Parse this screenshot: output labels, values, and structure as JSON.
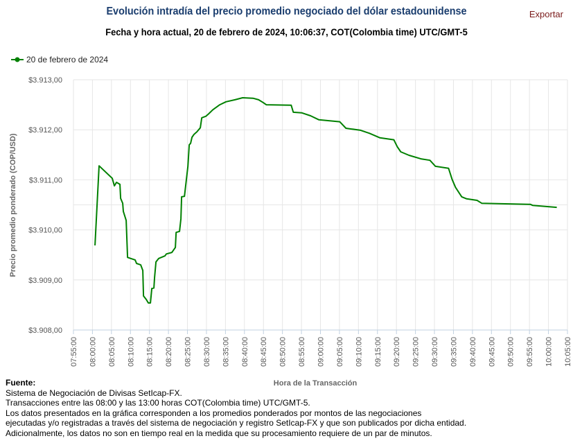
{
  "header": {
    "title": "Evolución intradía del precio promedio negociado del dólar estadounidense",
    "subtitle": "Fecha y hora actual, 20 de febrero de 2024, 10:06:37, COT(Colombia time) UTC/GMT-5",
    "export_label": "Exportar"
  },
  "footer": {
    "source_label": "Fuente:",
    "lines": [
      "Sistema de Negociación de Divisas SetIcap-FX.",
      "Transacciones entre las 08:00 y las 13:00 horas COT(Colombia time) UTC/GMT-5.",
      "Los datos presentados en la gráfica corresponden a los promedios ponderados por montos de las negociaciones",
      "ejecutadas y/o registradas a través del sistema de negociación y registro SetIcap-FX y que son publicados por dicha entidad.",
      "Adicionalmente, los datos no son en tiempo real en la medida que su procesamiento requiere de un par de minutos."
    ]
  },
  "colors": {
    "series": "#008000",
    "title": "#1a3d6e",
    "export": "#7a1a1a",
    "grid": "#e6e6e6",
    "axis": "#c0d0e0"
  },
  "chart_data": {
    "type": "line",
    "xlabel": "Hora de la Transacción",
    "ylabel": "Precio promedio ponderado (COP/USD)",
    "xlim": [
      "07:55:00",
      "10:05:00"
    ],
    "ylim": [
      3908,
      3913
    ],
    "grid": true,
    "legend_position": "top-left",
    "x_ticks": [
      "07:55:00",
      "08:00:00",
      "08:05:00",
      "08:10:00",
      "08:15:00",
      "08:20:00",
      "08:25:00",
      "08:30:00",
      "08:35:00",
      "08:40:00",
      "08:45:00",
      "08:50:00",
      "08:55:00",
      "09:00:00",
      "09:05:00",
      "09:10:00",
      "09:15:00",
      "09:20:00",
      "09:25:00",
      "09:30:00",
      "09:35:00",
      "09:40:00",
      "09:45:00",
      "09:50:00",
      "09:55:00",
      "10:00:00",
      "10:05:00"
    ],
    "y_ticks": [
      {
        "value": 3913,
        "label": "$3.913,00"
      },
      {
        "value": 3912,
        "label": "$3.912,00"
      },
      {
        "value": 3911,
        "label": "$3.911,00"
      },
      {
        "value": 3910,
        "label": "$3.910,00"
      },
      {
        "value": 3909,
        "label": "$3.909,00"
      },
      {
        "value": 3908,
        "label": "$3.908,00"
      }
    ],
    "series": [
      {
        "name": "20 de febrero de 2024",
        "color": "#008000",
        "points": [
          [
            "08:00:40",
            3909.69
          ],
          [
            "08:01:45",
            3911.28
          ],
          [
            "08:05:13",
            3911.03
          ],
          [
            "08:05:46",
            3910.88
          ],
          [
            "08:06:19",
            3910.95
          ],
          [
            "08:07:14",
            3910.91
          ],
          [
            "08:07:25",
            3910.63
          ],
          [
            "08:07:58",
            3910.53
          ],
          [
            "08:08:08",
            3910.37
          ],
          [
            "08:08:52",
            3910.19
          ],
          [
            "08:09:14",
            3909.45
          ],
          [
            "08:11:14",
            3909.4
          ],
          [
            "08:11:37",
            3909.33
          ],
          [
            "08:12:42",
            3909.3
          ],
          [
            "08:13:15",
            3909.19
          ],
          [
            "08:13:26",
            3908.68
          ],
          [
            "08:14:10",
            3908.61
          ],
          [
            "08:14:43",
            3908.54
          ],
          [
            "08:15:15",
            3908.54
          ],
          [
            "08:15:37",
            3908.83
          ],
          [
            "08:16:10",
            3908.84
          ],
          [
            "08:16:21",
            3909.05
          ],
          [
            "08:16:43",
            3909.36
          ],
          [
            "08:17:27",
            3909.43
          ],
          [
            "08:19:05",
            3909.48
          ],
          [
            "08:19:27",
            3909.52
          ],
          [
            "08:20:55",
            3909.55
          ],
          [
            "08:21:49",
            3909.65
          ],
          [
            "08:22:01",
            3909.95
          ],
          [
            "08:22:55",
            3909.97
          ],
          [
            "08:23:17",
            3910.22
          ],
          [
            "08:23:28",
            3910.66
          ],
          [
            "08:24:12",
            3910.67
          ],
          [
            "08:25:07",
            3911.27
          ],
          [
            "08:25:28",
            3911.7
          ],
          [
            "08:25:50",
            3911.73
          ],
          [
            "08:26:12",
            3911.85
          ],
          [
            "08:26:45",
            3911.91
          ],
          [
            "08:27:29",
            3911.96
          ],
          [
            "08:28:23",
            3912.04
          ],
          [
            "08:28:46",
            3912.24
          ],
          [
            "08:29:51",
            3912.27
          ],
          [
            "08:30:35",
            3912.32
          ],
          [
            "08:31:41",
            3912.4
          ],
          [
            "08:33:30",
            3912.5
          ],
          [
            "08:35:09",
            3912.56
          ],
          [
            "08:37:31",
            3912.6
          ],
          [
            "08:39:32",
            3912.64
          ],
          [
            "08:42:16",
            3912.63
          ],
          [
            "08:43:43",
            3912.6
          ],
          [
            "08:45:00",
            3912.54
          ],
          [
            "08:45:44",
            3912.5
          ],
          [
            "08:52:18",
            3912.49
          ],
          [
            "08:52:51",
            3912.35
          ],
          [
            "08:55:02",
            3912.34
          ],
          [
            "08:57:24",
            3912.28
          ],
          [
            "08:59:36",
            3912.2
          ],
          [
            "09:05:04",
            3912.16
          ],
          [
            "09:06:43",
            3912.03
          ],
          [
            "09:10:33",
            3911.99
          ],
          [
            "09:12:54",
            3911.93
          ],
          [
            "09:15:40",
            3911.84
          ],
          [
            "09:19:18",
            3911.8
          ],
          [
            "09:20:13",
            3911.66
          ],
          [
            "09:21:08",
            3911.56
          ],
          [
            "09:23:18",
            3911.49
          ],
          [
            "09:26:25",
            3911.42
          ],
          [
            "09:28:48",
            3911.39
          ],
          [
            "09:30:16",
            3911.27
          ],
          [
            "09:33:43",
            3911.23
          ],
          [
            "09:34:38",
            3911.01
          ],
          [
            "09:35:32",
            3910.85
          ],
          [
            "09:37:11",
            3910.66
          ],
          [
            "09:38:28",
            3910.62
          ],
          [
            "09:41:12",
            3910.59
          ],
          [
            "09:42:29",
            3910.53
          ],
          [
            "09:55:16",
            3910.51
          ],
          [
            "09:55:50",
            3910.49
          ],
          [
            "10:02:11",
            3910.45
          ]
        ]
      }
    ]
  }
}
